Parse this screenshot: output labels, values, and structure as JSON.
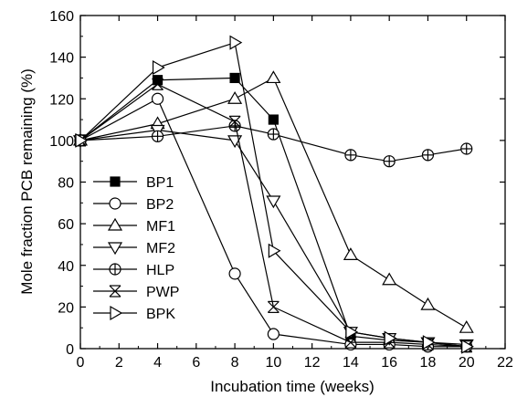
{
  "chart_data": {
    "type": "line",
    "xlabel": "Incubation time (weeks)",
    "ylabel": "Mole fraction PCB remaining (%)",
    "xlim": [
      0,
      22
    ],
    "ylim": [
      0,
      160
    ],
    "xticks": [
      0,
      2,
      4,
      6,
      8,
      10,
      12,
      14,
      16,
      18,
      20,
      22
    ],
    "yticks": [
      0,
      20,
      40,
      60,
      80,
      100,
      120,
      140,
      160
    ],
    "grid": false,
    "legend_position": "left",
    "series": [
      {
        "name": "BP1",
        "marker": "filled-square",
        "x": [
          0,
          4,
          8,
          10,
          14,
          16,
          18,
          20
        ],
        "values": [
          100,
          129,
          130,
          110,
          6,
          4,
          3,
          1
        ]
      },
      {
        "name": "BP2",
        "marker": "open-circle",
        "x": [
          0,
          4,
          8,
          10,
          14,
          16,
          18,
          20
        ],
        "values": [
          100,
          120,
          36,
          7,
          2,
          2,
          1,
          1
        ]
      },
      {
        "name": "MF1",
        "marker": "triangle-up",
        "x": [
          0,
          4,
          8,
          10,
          14,
          16,
          18,
          20
        ],
        "values": [
          100,
          108,
          120,
          130,
          45,
          33,
          21,
          10
        ]
      },
      {
        "name": "MF2",
        "marker": "triangle-down",
        "x": [
          0,
          4,
          8,
          10,
          14,
          16,
          18,
          20
        ],
        "values": [
          100,
          105,
          100,
          71,
          8,
          5,
          3,
          2
        ]
      },
      {
        "name": "HLP",
        "marker": "circle-cross",
        "x": [
          0,
          4,
          8,
          10,
          14,
          16,
          18,
          20
        ],
        "values": [
          100,
          102,
          107,
          103,
          93,
          90,
          93,
          96
        ]
      },
      {
        "name": "PWP",
        "marker": "x-bar",
        "x": [
          0,
          4,
          8,
          10,
          14,
          16,
          18,
          20
        ],
        "values": [
          100,
          127,
          109,
          20,
          3,
          3,
          2,
          1
        ]
      },
      {
        "name": "BPK",
        "marker": "triangle-right",
        "x": [
          0,
          4,
          8,
          10,
          14,
          16,
          18,
          20
        ],
        "values": [
          100,
          135,
          147,
          47,
          8,
          5,
          3,
          1
        ]
      }
    ]
  }
}
